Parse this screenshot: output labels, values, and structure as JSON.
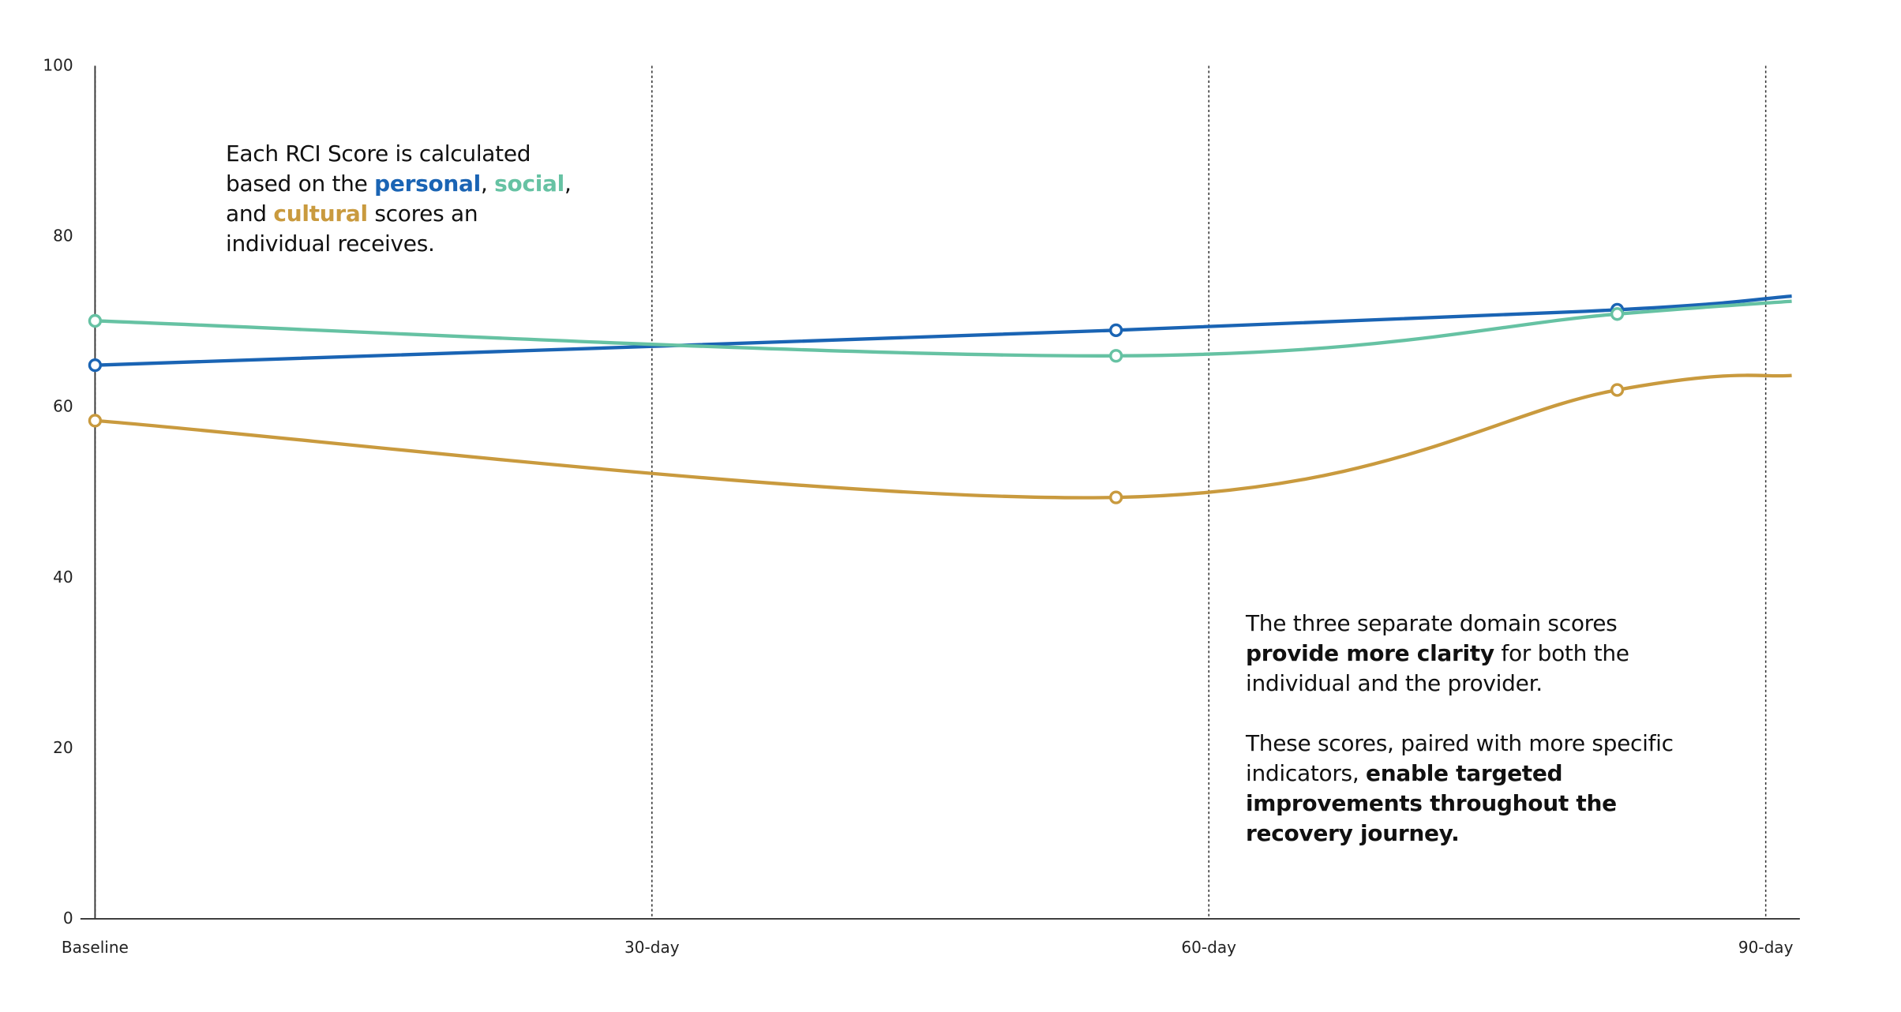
{
  "chart_data": {
    "type": "line",
    "title": "",
    "xlabel": "",
    "ylabel": "",
    "ylim": [
      0,
      100
    ],
    "xlim": [
      0,
      90
    ],
    "yticks": [
      "0",
      "20",
      "40",
      "60",
      "80",
      "100"
    ],
    "xticks": [
      {
        "label": "Baseline",
        "value": 0
      },
      {
        "label": "30-day",
        "value": 30
      },
      {
        "label": "60-day",
        "value": 60
      },
      {
        "label": "90-day",
        "value": 90
      }
    ],
    "grid": "vertical dotted lines at x ticks",
    "series": [
      {
        "key": "personal",
        "color": "#1a64b4",
        "x": [
          0,
          55,
          82,
          91.4
        ],
        "values": [
          64.9,
          69.0,
          71.4,
          73.0
        ],
        "markers": [
          true,
          true,
          true,
          false
        ]
      },
      {
        "key": "social",
        "color": "#66c2a3",
        "x": [
          0,
          55,
          82,
          91.4
        ],
        "values": [
          70.1,
          66.0,
          70.9,
          72.4
        ],
        "markers": [
          true,
          true,
          true,
          false
        ]
      },
      {
        "key": "cultural",
        "color": "#c99a3e",
        "x": [
          0,
          55,
          82,
          91.4
        ],
        "values": [
          58.4,
          49.4,
          62.0,
          63.7
        ],
        "markers": [
          true,
          true,
          true,
          false
        ]
      }
    ]
  },
  "annotations": {
    "first": {
      "t1": "Each RCI Score is calculated based on the ",
      "personal": "personal",
      "t2": ", ",
      "social": "social",
      "t3": ", and ",
      "cultural": "cultural",
      "t4": " scores an individual receives."
    },
    "second": {
      "p1a": "The three separate domain scores ",
      "p1b": "provide more clarity",
      "p1c": " for both the individual and the provider.",
      "p2a": "These scores, paired with more specific indicators, ",
      "p2b": "enable targeted improvements throughout the recovery journey."
    }
  }
}
